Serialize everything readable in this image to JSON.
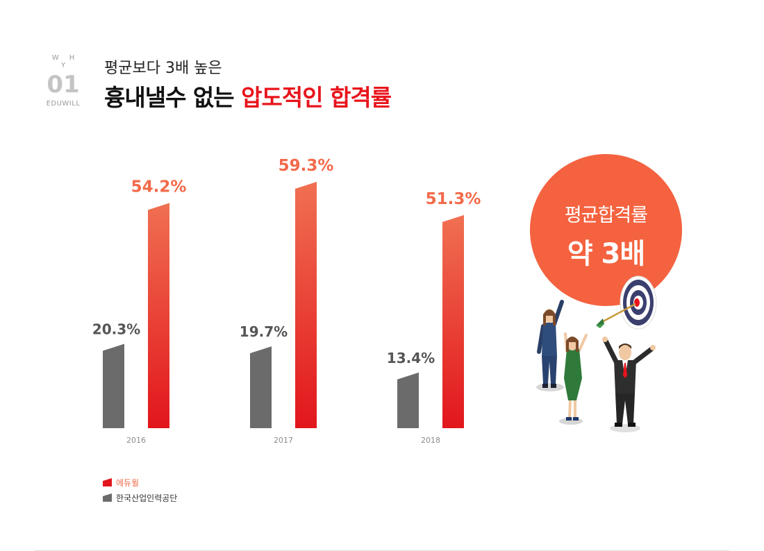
{
  "header": {
    "why": "W H Y",
    "number": "01",
    "brand": "EDUWILL",
    "subtitle": "평균보다 3배 높은",
    "headline_plain": "흉내낼수 없는 ",
    "headline_highlight": "압도적인 합격률"
  },
  "badge": {
    "line1": "평균합격률",
    "line2": "약 3배"
  },
  "colors": {
    "eduwill_top": "#f07052",
    "eduwill_bottom": "#e2161c",
    "average_bar": "#6b6b6b",
    "eduwill_label": "#f26a4a",
    "average_label": "#555555",
    "badge": "#f4623f",
    "highlight": "#e8141c"
  },
  "chart_data": {
    "type": "bar",
    "title": "",
    "xlabel": "",
    "ylabel": "",
    "ylim": [
      0,
      60
    ],
    "categories": [
      "2016",
      "2017",
      "2018"
    ],
    "series": [
      {
        "name": "한국산업인력공단",
        "values": [
          20.3,
          19.7,
          13.4
        ],
        "labels": [
          "20.3%",
          "19.7%",
          "13.4%"
        ]
      },
      {
        "name": "에듀윌",
        "values": [
          54.2,
          59.3,
          51.3
        ],
        "labels": [
          "54.2%",
          "59.3%",
          "51.3%"
        ]
      }
    ],
    "legend": [
      {
        "name": "에듀윌",
        "color": "#e2161c"
      },
      {
        "name": "한국산업인력공단",
        "color": "#6b6b6b"
      }
    ],
    "legend_position": "bottom-left"
  }
}
